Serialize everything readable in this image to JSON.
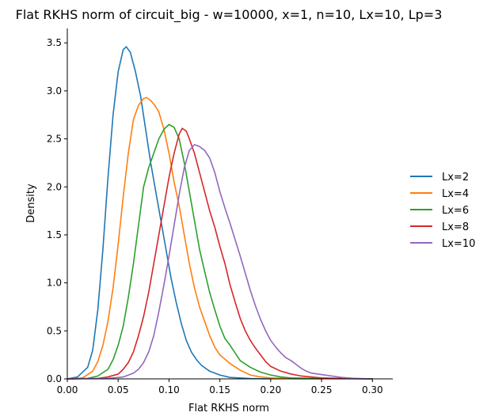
{
  "chart_data": {
    "type": "line",
    "title": "Flat RKHS norm of circuit_big - w=10000, x=1, n=10, Lx=10, Lp=3",
    "xlabel": "Flat RKHS norm",
    "ylabel": "Density",
    "xlim": [
      0.0,
      0.32
    ],
    "ylim": [
      0.0,
      3.65
    ],
    "xticks": [
      0.0,
      0.05,
      0.1,
      0.15,
      0.2,
      0.25,
      0.3
    ],
    "xtick_labels": [
      "0.00",
      "0.05",
      "0.10",
      "0.15",
      "0.20",
      "0.25",
      "0.30"
    ],
    "yticks": [
      0.0,
      0.5,
      1.0,
      1.5,
      2.0,
      2.5,
      3.0,
      3.5
    ],
    "ytick_labels": [
      "0.0",
      "0.5",
      "1.0",
      "1.5",
      "2.0",
      "2.5",
      "3.0",
      "3.5"
    ],
    "grid": false,
    "legend_position": "right",
    "series": [
      {
        "name": "Lx=2",
        "color": "#1f77b4",
        "points": [
          [
            0.0,
            0.0
          ],
          [
            0.01,
            0.02
          ],
          [
            0.02,
            0.12
          ],
          [
            0.025,
            0.3
          ],
          [
            0.03,
            0.72
          ],
          [
            0.035,
            1.35
          ],
          [
            0.04,
            2.1
          ],
          [
            0.045,
            2.75
          ],
          [
            0.05,
            3.2
          ],
          [
            0.055,
            3.43
          ],
          [
            0.058,
            3.46
          ],
          [
            0.062,
            3.4
          ],
          [
            0.067,
            3.2
          ],
          [
            0.072,
            2.95
          ],
          [
            0.077,
            2.6
          ],
          [
            0.082,
            2.25
          ],
          [
            0.087,
            1.95
          ],
          [
            0.092,
            1.65
          ],
          [
            0.097,
            1.35
          ],
          [
            0.102,
            1.05
          ],
          [
            0.107,
            0.8
          ],
          [
            0.112,
            0.58
          ],
          [
            0.117,
            0.4
          ],
          [
            0.122,
            0.28
          ],
          [
            0.127,
            0.2
          ],
          [
            0.132,
            0.14
          ],
          [
            0.14,
            0.08
          ],
          [
            0.15,
            0.04
          ],
          [
            0.16,
            0.015
          ],
          [
            0.18,
            0.004
          ],
          [
            0.2,
            0.0
          ]
        ]
      },
      {
        "name": "Lx=4",
        "color": "#ff7f0e",
        "points": [
          [
            0.0,
            0.0
          ],
          [
            0.015,
            0.01
          ],
          [
            0.025,
            0.08
          ],
          [
            0.03,
            0.18
          ],
          [
            0.035,
            0.35
          ],
          [
            0.04,
            0.6
          ],
          [
            0.045,
            0.95
          ],
          [
            0.05,
            1.4
          ],
          [
            0.055,
            1.9
          ],
          [
            0.06,
            2.35
          ],
          [
            0.065,
            2.7
          ],
          [
            0.07,
            2.85
          ],
          [
            0.075,
            2.92
          ],
          [
            0.078,
            2.93
          ],
          [
            0.082,
            2.9
          ],
          [
            0.086,
            2.85
          ],
          [
            0.09,
            2.78
          ],
          [
            0.095,
            2.6
          ],
          [
            0.1,
            2.35
          ],
          [
            0.105,
            2.05
          ],
          [
            0.11,
            1.8
          ],
          [
            0.115,
            1.5
          ],
          [
            0.12,
            1.2
          ],
          [
            0.125,
            0.95
          ],
          [
            0.13,
            0.75
          ],
          [
            0.135,
            0.6
          ],
          [
            0.14,
            0.45
          ],
          [
            0.145,
            0.33
          ],
          [
            0.15,
            0.25
          ],
          [
            0.16,
            0.16
          ],
          [
            0.17,
            0.09
          ],
          [
            0.18,
            0.04
          ],
          [
            0.19,
            0.02
          ],
          [
            0.2,
            0.01
          ],
          [
            0.22,
            0.003
          ],
          [
            0.25,
            0.0
          ]
        ]
      },
      {
        "name": "Lx=6",
        "color": "#2ca02c",
        "points": [
          [
            0.0,
            0.0
          ],
          [
            0.02,
            0.005
          ],
          [
            0.03,
            0.03
          ],
          [
            0.04,
            0.1
          ],
          [
            0.045,
            0.2
          ],
          [
            0.05,
            0.35
          ],
          [
            0.055,
            0.55
          ],
          [
            0.06,
            0.85
          ],
          [
            0.065,
            1.2
          ],
          [
            0.07,
            1.6
          ],
          [
            0.075,
            2.0
          ],
          [
            0.08,
            2.2
          ],
          [
            0.085,
            2.35
          ],
          [
            0.09,
            2.5
          ],
          [
            0.095,
            2.6
          ],
          [
            0.1,
            2.65
          ],
          [
            0.105,
            2.62
          ],
          [
            0.11,
            2.5
          ],
          [
            0.115,
            2.25
          ],
          [
            0.12,
            1.95
          ],
          [
            0.125,
            1.65
          ],
          [
            0.13,
            1.35
          ],
          [
            0.135,
            1.12
          ],
          [
            0.14,
            0.9
          ],
          [
            0.145,
            0.72
          ],
          [
            0.15,
            0.55
          ],
          [
            0.155,
            0.42
          ],
          [
            0.16,
            0.35
          ],
          [
            0.165,
            0.27
          ],
          [
            0.17,
            0.19
          ],
          [
            0.18,
            0.12
          ],
          [
            0.19,
            0.07
          ],
          [
            0.2,
            0.04
          ],
          [
            0.21,
            0.02
          ],
          [
            0.22,
            0.01
          ],
          [
            0.25,
            0.003
          ],
          [
            0.3,
            0.0
          ]
        ]
      },
      {
        "name": "Lx=8",
        "color": "#d62728",
        "points": [
          [
            0.0,
            0.0
          ],
          [
            0.03,
            0.005
          ],
          [
            0.04,
            0.02
          ],
          [
            0.05,
            0.05
          ],
          [
            0.055,
            0.1
          ],
          [
            0.06,
            0.17
          ],
          [
            0.065,
            0.28
          ],
          [
            0.07,
            0.45
          ],
          [
            0.075,
            0.65
          ],
          [
            0.08,
            0.9
          ],
          [
            0.085,
            1.2
          ],
          [
            0.09,
            1.5
          ],
          [
            0.095,
            1.8
          ],
          [
            0.1,
            2.1
          ],
          [
            0.105,
            2.35
          ],
          [
            0.11,
            2.55
          ],
          [
            0.113,
            2.61
          ],
          [
            0.117,
            2.58
          ],
          [
            0.12,
            2.5
          ],
          [
            0.125,
            2.35
          ],
          [
            0.13,
            2.15
          ],
          [
            0.135,
            1.95
          ],
          [
            0.14,
            1.75
          ],
          [
            0.145,
            1.58
          ],
          [
            0.15,
            1.38
          ],
          [
            0.155,
            1.2
          ],
          [
            0.16,
            0.98
          ],
          [
            0.165,
            0.8
          ],
          [
            0.17,
            0.63
          ],
          [
            0.175,
            0.5
          ],
          [
            0.18,
            0.4
          ],
          [
            0.185,
            0.32
          ],
          [
            0.19,
            0.25
          ],
          [
            0.195,
            0.18
          ],
          [
            0.2,
            0.13
          ],
          [
            0.21,
            0.08
          ],
          [
            0.22,
            0.05
          ],
          [
            0.23,
            0.03
          ],
          [
            0.25,
            0.01
          ],
          [
            0.28,
            0.003
          ],
          [
            0.3,
            0.0
          ]
        ]
      },
      {
        "name": "Lx=10",
        "color": "#9467bd",
        "points": [
          [
            0.0,
            0.0
          ],
          [
            0.04,
            0.005
          ],
          [
            0.055,
            0.02
          ],
          [
            0.065,
            0.06
          ],
          [
            0.07,
            0.1
          ],
          [
            0.075,
            0.17
          ],
          [
            0.08,
            0.28
          ],
          [
            0.085,
            0.45
          ],
          [
            0.09,
            0.7
          ],
          [
            0.095,
            0.98
          ],
          [
            0.1,
            1.28
          ],
          [
            0.105,
            1.6
          ],
          [
            0.11,
            1.92
          ],
          [
            0.115,
            2.2
          ],
          [
            0.12,
            2.38
          ],
          [
            0.125,
            2.44
          ],
          [
            0.13,
            2.42
          ],
          [
            0.135,
            2.38
          ],
          [
            0.14,
            2.3
          ],
          [
            0.145,
            2.15
          ],
          [
            0.15,
            1.95
          ],
          [
            0.155,
            1.78
          ],
          [
            0.16,
            1.62
          ],
          [
            0.165,
            1.45
          ],
          [
            0.17,
            1.28
          ],
          [
            0.175,
            1.1
          ],
          [
            0.18,
            0.92
          ],
          [
            0.185,
            0.76
          ],
          [
            0.19,
            0.62
          ],
          [
            0.195,
            0.5
          ],
          [
            0.2,
            0.4
          ],
          [
            0.205,
            0.33
          ],
          [
            0.21,
            0.27
          ],
          [
            0.215,
            0.22
          ],
          [
            0.22,
            0.19
          ],
          [
            0.225,
            0.15
          ],
          [
            0.23,
            0.11
          ],
          [
            0.235,
            0.08
          ],
          [
            0.24,
            0.06
          ],
          [
            0.25,
            0.045
          ],
          [
            0.26,
            0.03
          ],
          [
            0.27,
            0.015
          ],
          [
            0.28,
            0.007
          ],
          [
            0.29,
            0.003
          ],
          [
            0.3,
            0.0
          ]
        ]
      }
    ]
  }
}
